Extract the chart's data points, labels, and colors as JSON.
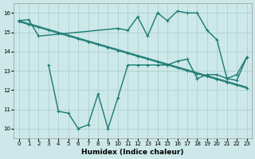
{
  "xlabel": "Humidex (Indice chaleur)",
  "background_color": "#cce8e8",
  "grid_color": "#aacccc",
  "line_color": "#1a7a72",
  "xlim": [
    -0.5,
    23.5
  ],
  "ylim": [
    9.5,
    16.5
  ],
  "yticks": [
    10,
    11,
    12,
    13,
    14,
    15,
    16
  ],
  "xticks": [
    0,
    1,
    2,
    3,
    4,
    5,
    6,
    7,
    8,
    9,
    10,
    11,
    12,
    13,
    14,
    15,
    16,
    17,
    18,
    19,
    20,
    21,
    22,
    23
  ],
  "line_straight1_x": [
    0,
    1,
    2,
    3,
    4,
    5,
    6,
    7,
    8,
    9,
    10,
    11,
    12,
    13,
    14,
    15,
    16,
    17,
    18,
    19,
    20,
    21,
    22,
    23
  ],
  "line_straight1_y": [
    15.55,
    15.4,
    15.25,
    15.1,
    14.95,
    14.8,
    14.65,
    14.5,
    14.35,
    14.2,
    14.05,
    13.9,
    13.75,
    13.6,
    13.45,
    13.3,
    13.15,
    13.0,
    12.85,
    12.7,
    12.55,
    12.4,
    12.25,
    12.1
  ],
  "line_straight2_x": [
    0,
    1,
    2,
    3,
    4,
    5,
    6,
    7,
    8,
    9,
    10,
    11,
    12,
    13,
    14,
    15,
    16,
    17,
    18,
    19,
    20,
    21,
    22,
    23
  ],
  "line_straight2_y": [
    15.6,
    15.45,
    15.3,
    15.15,
    15.0,
    14.85,
    14.7,
    14.55,
    14.4,
    14.25,
    14.1,
    13.95,
    13.8,
    13.65,
    13.5,
    13.35,
    13.2,
    13.05,
    12.9,
    12.75,
    12.6,
    12.45,
    12.3,
    12.15
  ],
  "line_curvy_x": [
    0,
    1,
    2,
    10,
    11,
    12,
    13,
    14,
    15,
    16,
    17,
    18,
    19,
    20,
    21,
    22,
    23
  ],
  "line_curvy_y": [
    15.6,
    15.65,
    14.8,
    15.2,
    15.1,
    15.8,
    14.8,
    16.0,
    15.6,
    16.1,
    16.0,
    16.0,
    15.1,
    14.6,
    12.6,
    12.8,
    13.7
  ],
  "line_zigzag_x": [
    3,
    4,
    5,
    6,
    7,
    8,
    9,
    10,
    11,
    12,
    13,
    14,
    15,
    16,
    17,
    18,
    19,
    20,
    21,
    22,
    23
  ],
  "line_zigzag_y": [
    13.3,
    10.9,
    10.8,
    10.0,
    10.2,
    11.8,
    10.0,
    11.6,
    13.3,
    13.3,
    13.3,
    13.3,
    13.3,
    13.5,
    13.6,
    12.6,
    12.8,
    12.8,
    12.6,
    12.5,
    13.7
  ]
}
